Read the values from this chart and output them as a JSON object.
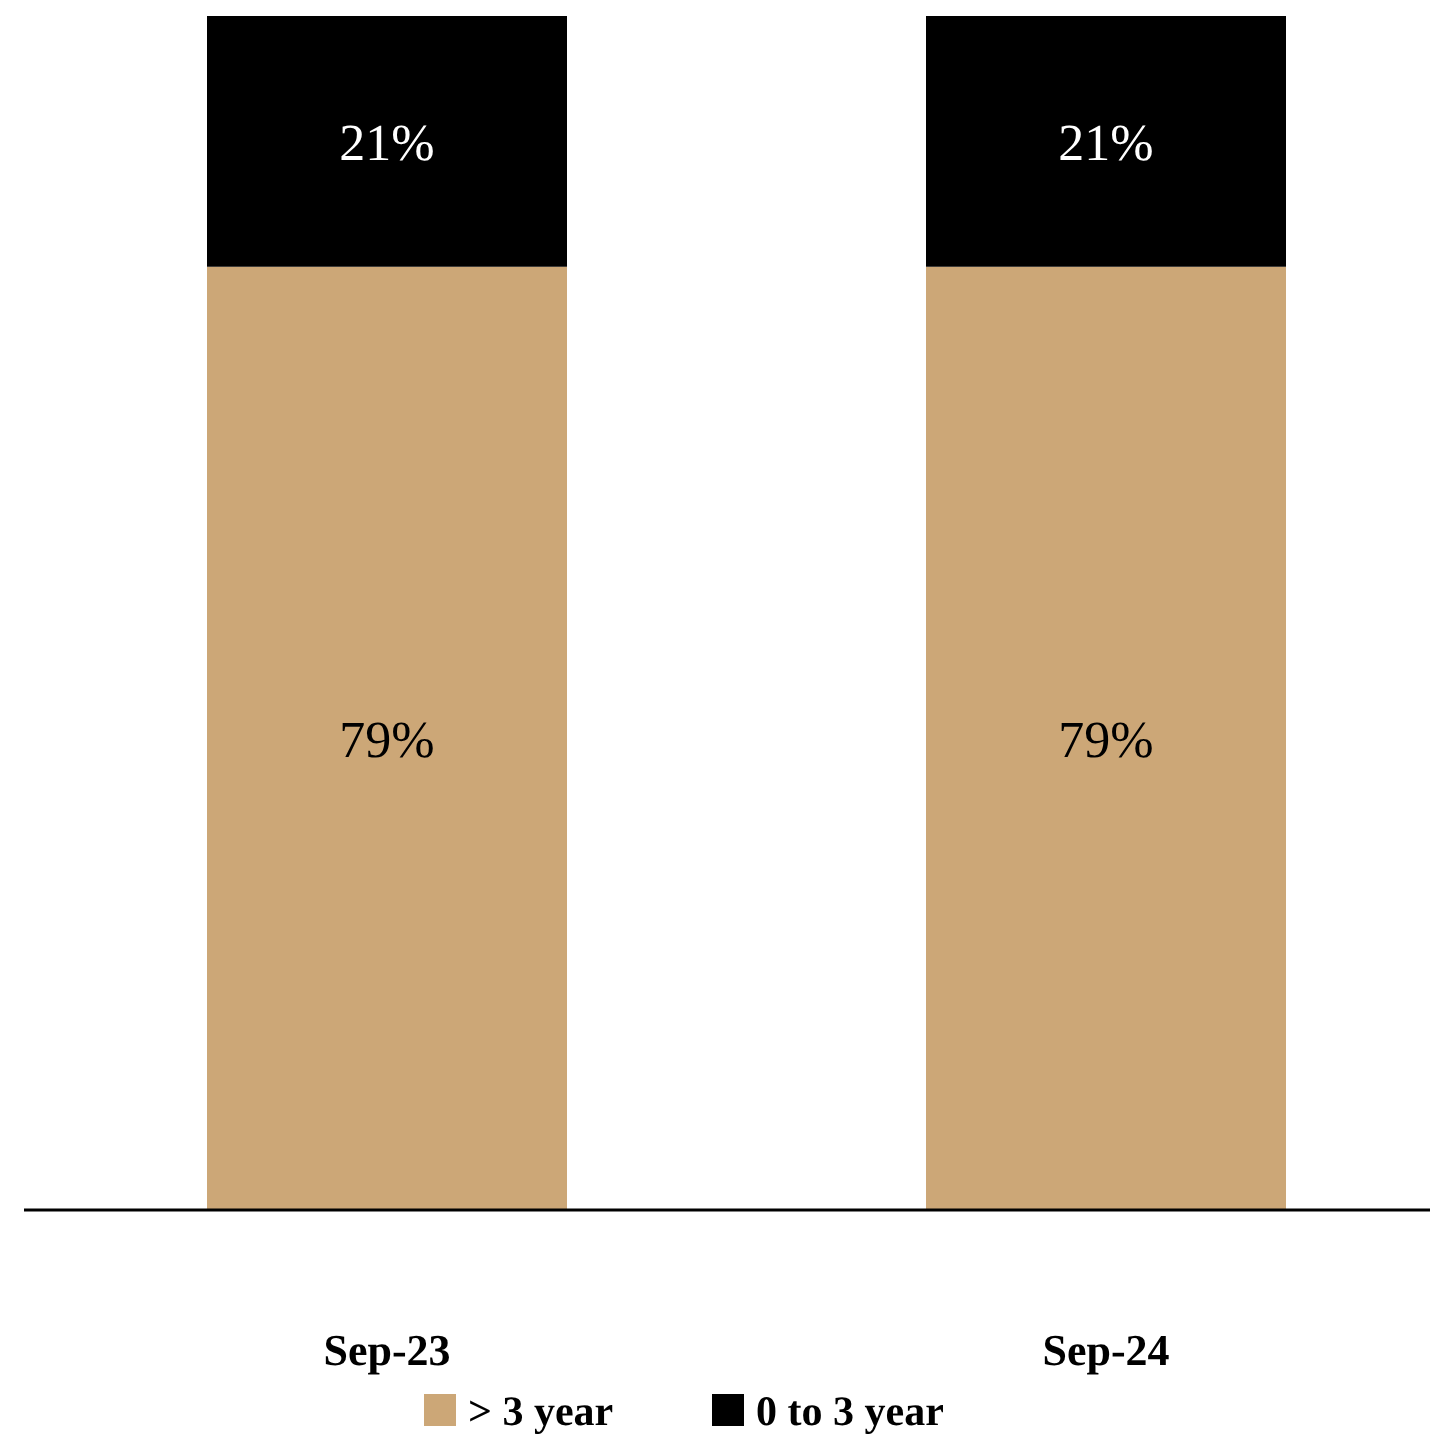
{
  "chart_data": {
    "type": "bar",
    "stacked": true,
    "categories": [
      "Sep-23",
      "Sep-24"
    ],
    "ylim": [
      0,
      100
    ],
    "legend": "bottom",
    "series": [
      {
        "name": "> 3 year",
        "color": "#cca777",
        "values": [
          79,
          79
        ],
        "value_labels": [
          "79%",
          "79%"
        ]
      },
      {
        "name": "0 to 3 year",
        "color": "#000000",
        "values": [
          21,
          21
        ],
        "value_labels": [
          "21%",
          "21%"
        ]
      }
    ]
  }
}
